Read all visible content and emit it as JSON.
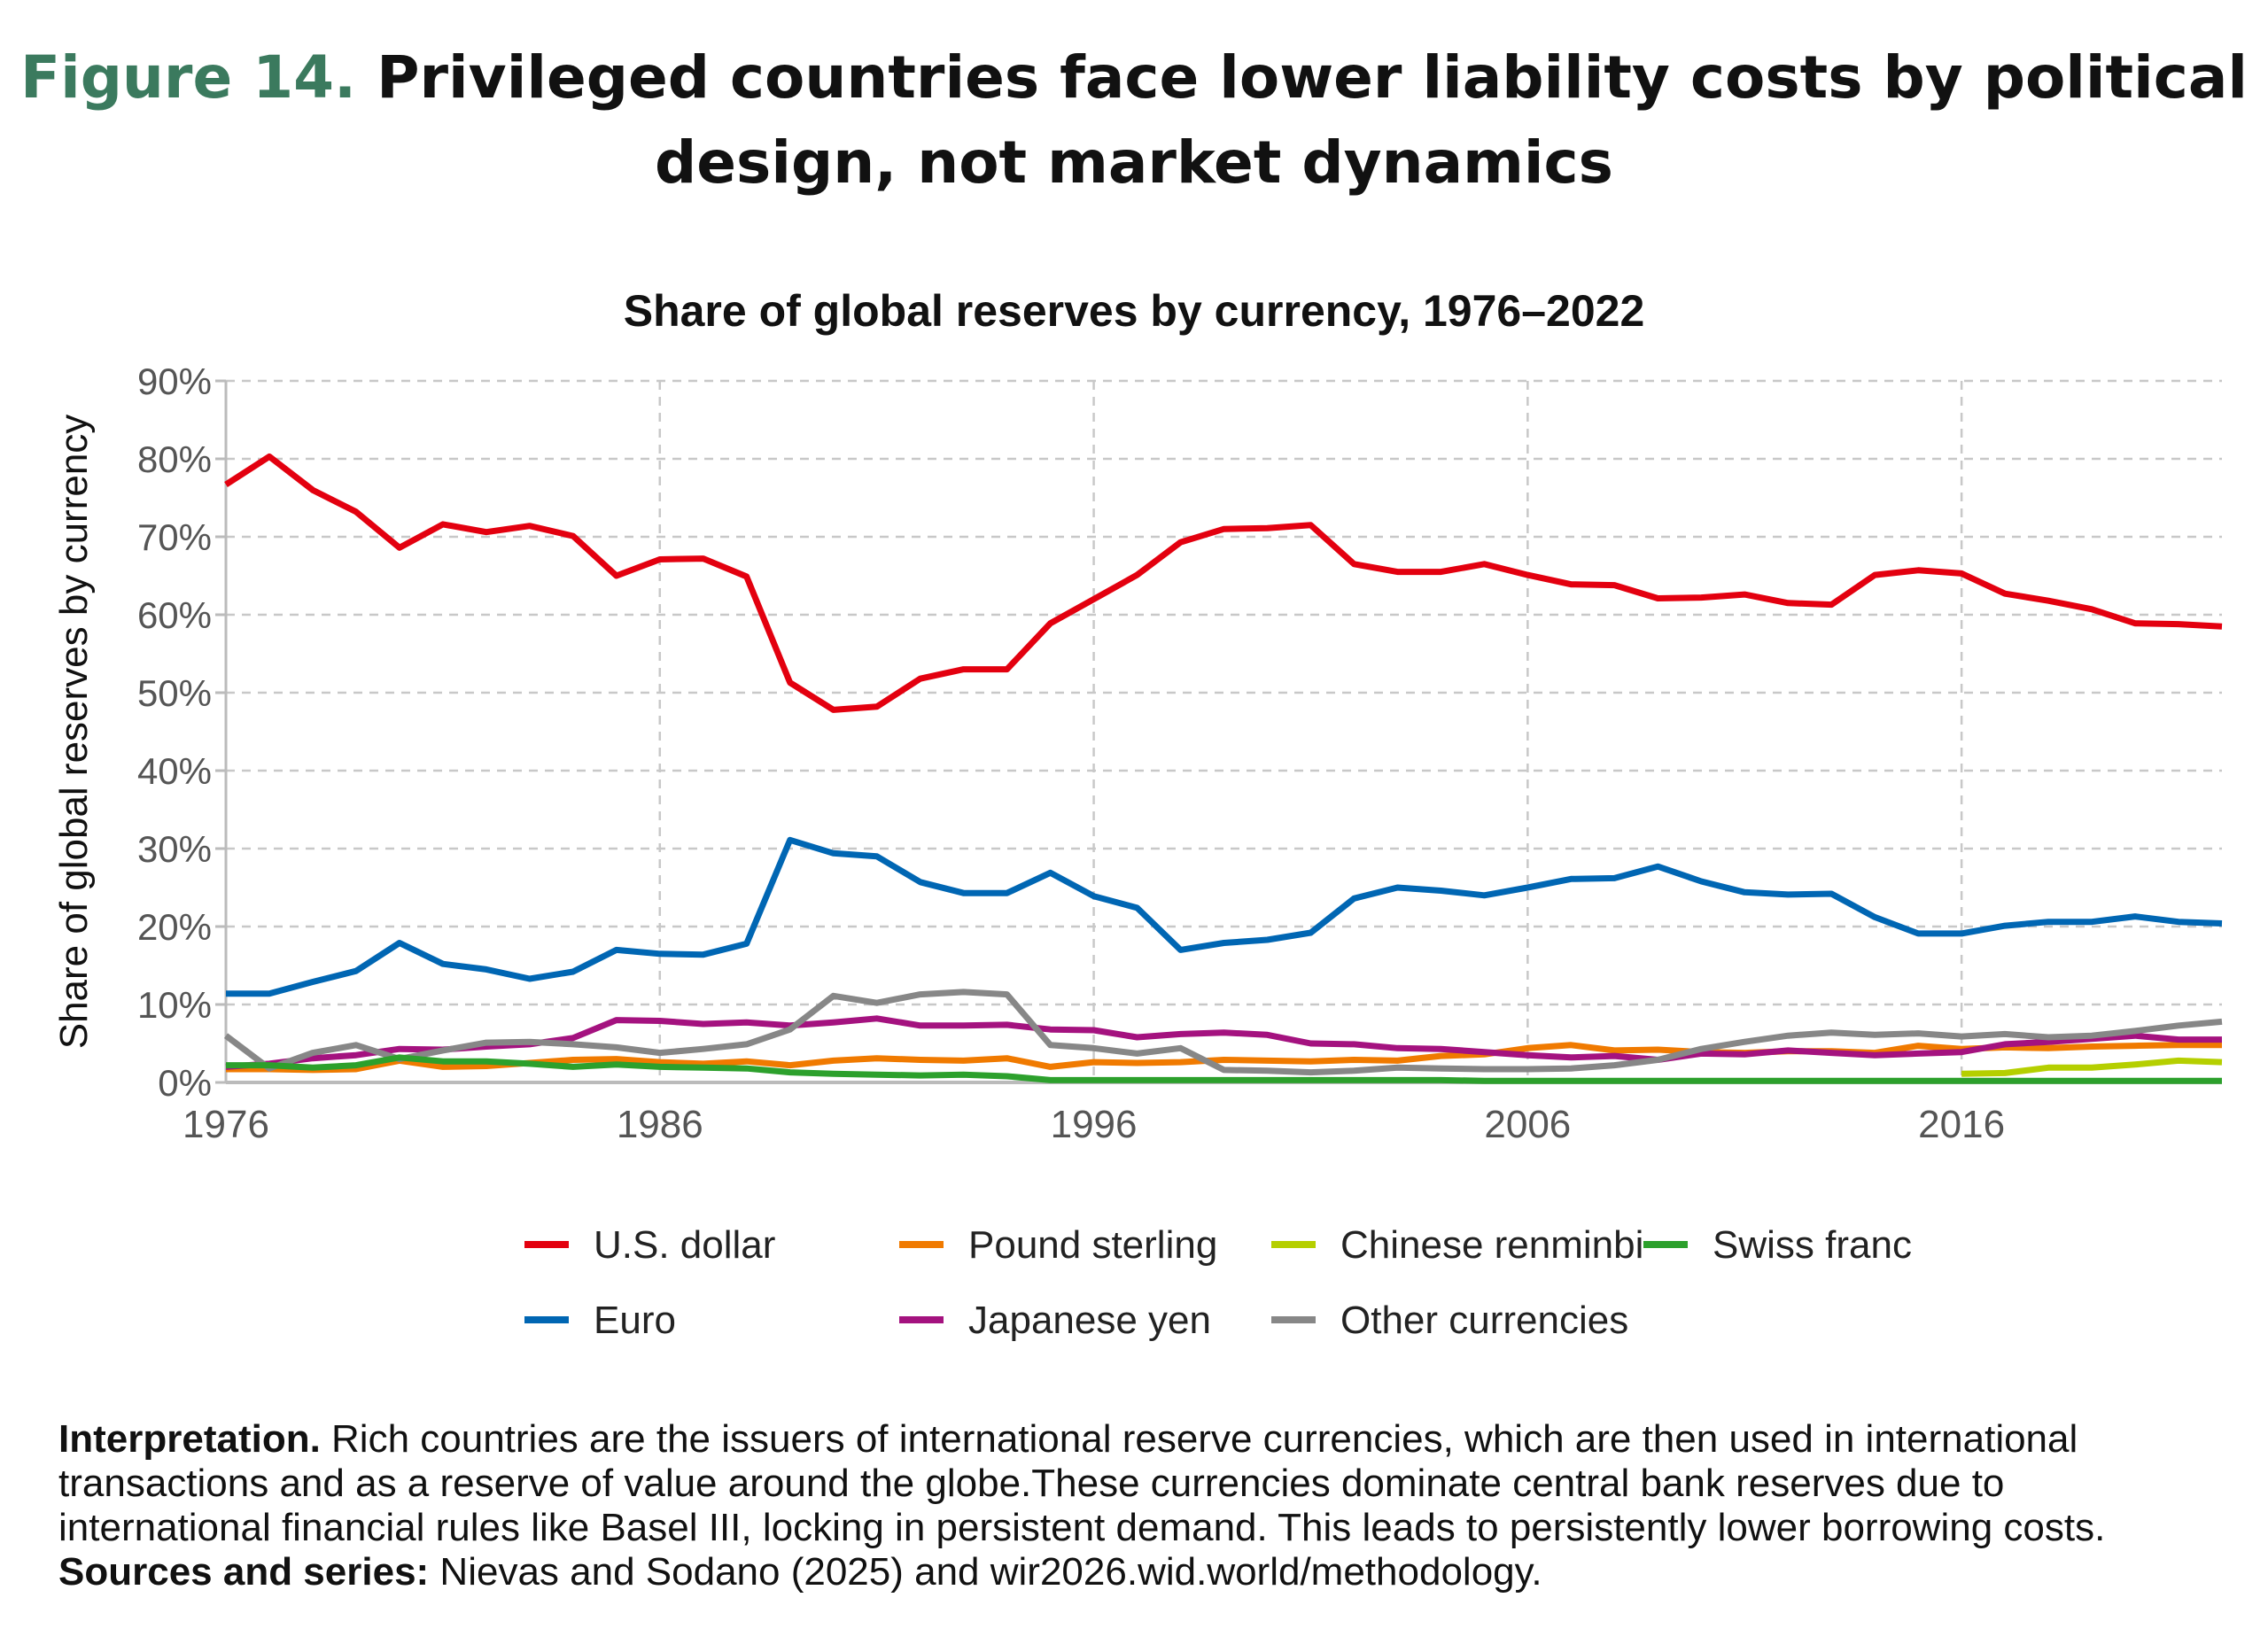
{
  "figure": {
    "label": "Figure 14.",
    "title": "Privileged countries face lower liability costs by political design, not market dynamics"
  },
  "footer": {
    "interpretation_label": "Interpretation.",
    "interpretation_text": " Rich countries are the issuers of international reserve currencies, which are then used in international transactions and as a reserve of value around the globe.These currencies dominate central bank reserves due to international financial rules like Basel III, locking in persistent demand. This leads to persistently lower borrowing costs. ",
    "sources_label": "Sources and series:",
    "sources_text": " Nievas and Sodano (2025) and wir2026.wid.world/methodology."
  },
  "chart_data": {
    "type": "line",
    "title": "Share of global reserves by currency, 1976–2022",
    "xlabel": "",
    "ylabel": "Share of global reserves by currency",
    "xlim": [
      1976,
      2022
    ],
    "ylim": [
      0,
      90
    ],
    "xticks": [
      1976,
      1986,
      1996,
      2006,
      2016
    ],
    "yticks": [
      0,
      10,
      20,
      30,
      40,
      50,
      60,
      70,
      80,
      90
    ],
    "ytick_format": "%",
    "grid": true,
    "legend_placement": "bottom",
    "x": [
      1976,
      1977,
      1978,
      1979,
      1980,
      1981,
      1982,
      1983,
      1984,
      1985,
      1986,
      1987,
      1988,
      1989,
      1990,
      1991,
      1992,
      1993,
      1994,
      1995,
      1996,
      1997,
      1998,
      1999,
      2000,
      2001,
      2002,
      2003,
      2004,
      2005,
      2006,
      2007,
      2008,
      2009,
      2010,
      2011,
      2012,
      2013,
      2014,
      2015,
      2016,
      2017,
      2018,
      2019,
      2020,
      2021,
      2022
    ],
    "series": [
      {
        "name": "U.S. dollar",
        "color": "#e3000f",
        "values": [
          76.7,
          80.3,
          76,
          73.2,
          68.6,
          71.6,
          70.6,
          71.4,
          70.1,
          65,
          67.1,
          67.2,
          64.9,
          51.3,
          47.8,
          48.2,
          51.8,
          53,
          53,
          58.9,
          62,
          65.1,
          69.3,
          71,
          71.1,
          71.5,
          66.5,
          65.5,
          65.5,
          66.5,
          65.1,
          63.9,
          63.8,
          62.1,
          62.2,
          62.6,
          61.5,
          61.3,
          65.1,
          65.7,
          65.3,
          62.7,
          61.8,
          60.7,
          58.9,
          58.8,
          58.5
        ]
      },
      {
        "name": "Euro",
        "color": "#0066b3",
        "values": [
          11.4,
          11.4,
          12.9,
          14.3,
          17.9,
          15.2,
          14.5,
          13.3,
          14.2,
          17,
          16.5,
          16.4,
          17.8,
          31.1,
          29.4,
          29,
          25.7,
          24.3,
          24.3,
          26.9,
          23.9,
          22.4,
          17,
          17.9,
          18.3,
          19.2,
          23.6,
          25,
          24.6,
          24,
          25,
          26.1,
          26.2,
          27.7,
          25.8,
          24.4,
          24.1,
          24.2,
          21.2,
          19.1,
          19.1,
          20.1,
          20.6,
          20.6,
          21.3,
          20.6,
          20.4
        ]
      },
      {
        "name": "Pound sterling",
        "color": "#f07a00",
        "values": [
          1.7,
          1.7,
          1.6,
          1.7,
          2.8,
          2,
          2.1,
          2.5,
          2.9,
          3,
          2.6,
          2.4,
          2.7,
          2.2,
          2.8,
          3.1,
          2.9,
          2.8,
          3.1,
          2,
          2.6,
          2.5,
          2.6,
          2.9,
          2.8,
          2.7,
          2.9,
          2.8,
          3.4,
          3.6,
          4.4,
          4.8,
          4.1,
          4.2,
          3.9,
          3.8,
          4,
          4,
          3.8,
          4.7,
          4.3,
          4.5,
          4.4,
          4.6,
          4.7,
          4.8,
          4.8
        ]
      },
      {
        "name": "Japanese yen",
        "color": "#a4127f",
        "values": [
          2,
          2.4,
          3.1,
          3.5,
          4.3,
          4.2,
          4.6,
          4.9,
          5.7,
          8,
          7.9,
          7.5,
          7.7,
          7.3,
          7.7,
          8.2,
          7.3,
          7.3,
          7.4,
          6.8,
          6.7,
          5.8,
          6.2,
          6.4,
          6.1,
          5,
          4.9,
          4.4,
          4.3,
          3.9,
          3.5,
          3.2,
          3.4,
          2.9,
          3.7,
          3.6,
          4.1,
          3.8,
          3.5,
          3.7,
          3.9,
          4.9,
          5.2,
          5.6,
          6,
          5.5,
          5.5
        ]
      },
      {
        "name": "Chinese renminbi",
        "color": "#b5cf00",
        "values": [
          null,
          null,
          null,
          null,
          null,
          null,
          null,
          null,
          null,
          null,
          null,
          null,
          null,
          null,
          null,
          null,
          null,
          null,
          null,
          null,
          null,
          null,
          null,
          null,
          null,
          null,
          null,
          null,
          null,
          null,
          null,
          null,
          null,
          null,
          null,
          null,
          null,
          null,
          null,
          null,
          1.1,
          1.2,
          1.9,
          1.9,
          2.3,
          2.8,
          2.6
        ]
      },
      {
        "name": "Other currencies",
        "color": "#878787",
        "values": [
          6,
          1.8,
          3.8,
          4.8,
          3,
          4.1,
          5.1,
          5.2,
          4.9,
          4.5,
          3.8,
          4.3,
          4.9,
          6.8,
          11.1,
          10.2,
          11.3,
          11.6,
          11.3,
          4.8,
          4.4,
          3.7,
          4.4,
          1.6,
          1.5,
          1.3,
          1.5,
          1.9,
          1.8,
          1.7,
          1.7,
          1.8,
          2.2,
          2.9,
          4.3,
          5.2,
          6,
          6.4,
          6.1,
          6.3,
          5.9,
          6.2,
          5.8,
          6,
          6.6,
          7.3,
          7.8
        ]
      },
      {
        "name": "Swiss franc",
        "color": "#2ca02c",
        "values": [
          2.2,
          2.2,
          1.9,
          2.2,
          3.2,
          2.7,
          2.7,
          2.4,
          2,
          2.3,
          2,
          1.9,
          1.8,
          1.3,
          1.1,
          1,
          0.9,
          1,
          0.8,
          0.3,
          0.3,
          0.3,
          0.3,
          0.3,
          0.3,
          0.3,
          0.3,
          0.3,
          0.3,
          0.2,
          0.2,
          0.2,
          0.2,
          0.2,
          0.2,
          0.2,
          0.2,
          0.2,
          0.2,
          0.2,
          0.2,
          0.2,
          0.2,
          0.2,
          0.2,
          0.2,
          0.2
        ]
      }
    ],
    "legend_order": [
      "U.S. dollar",
      "Pound sterling",
      "Chinese renminbi",
      "Swiss franc",
      "Euro",
      "Japanese yen",
      "Other currencies"
    ]
  }
}
